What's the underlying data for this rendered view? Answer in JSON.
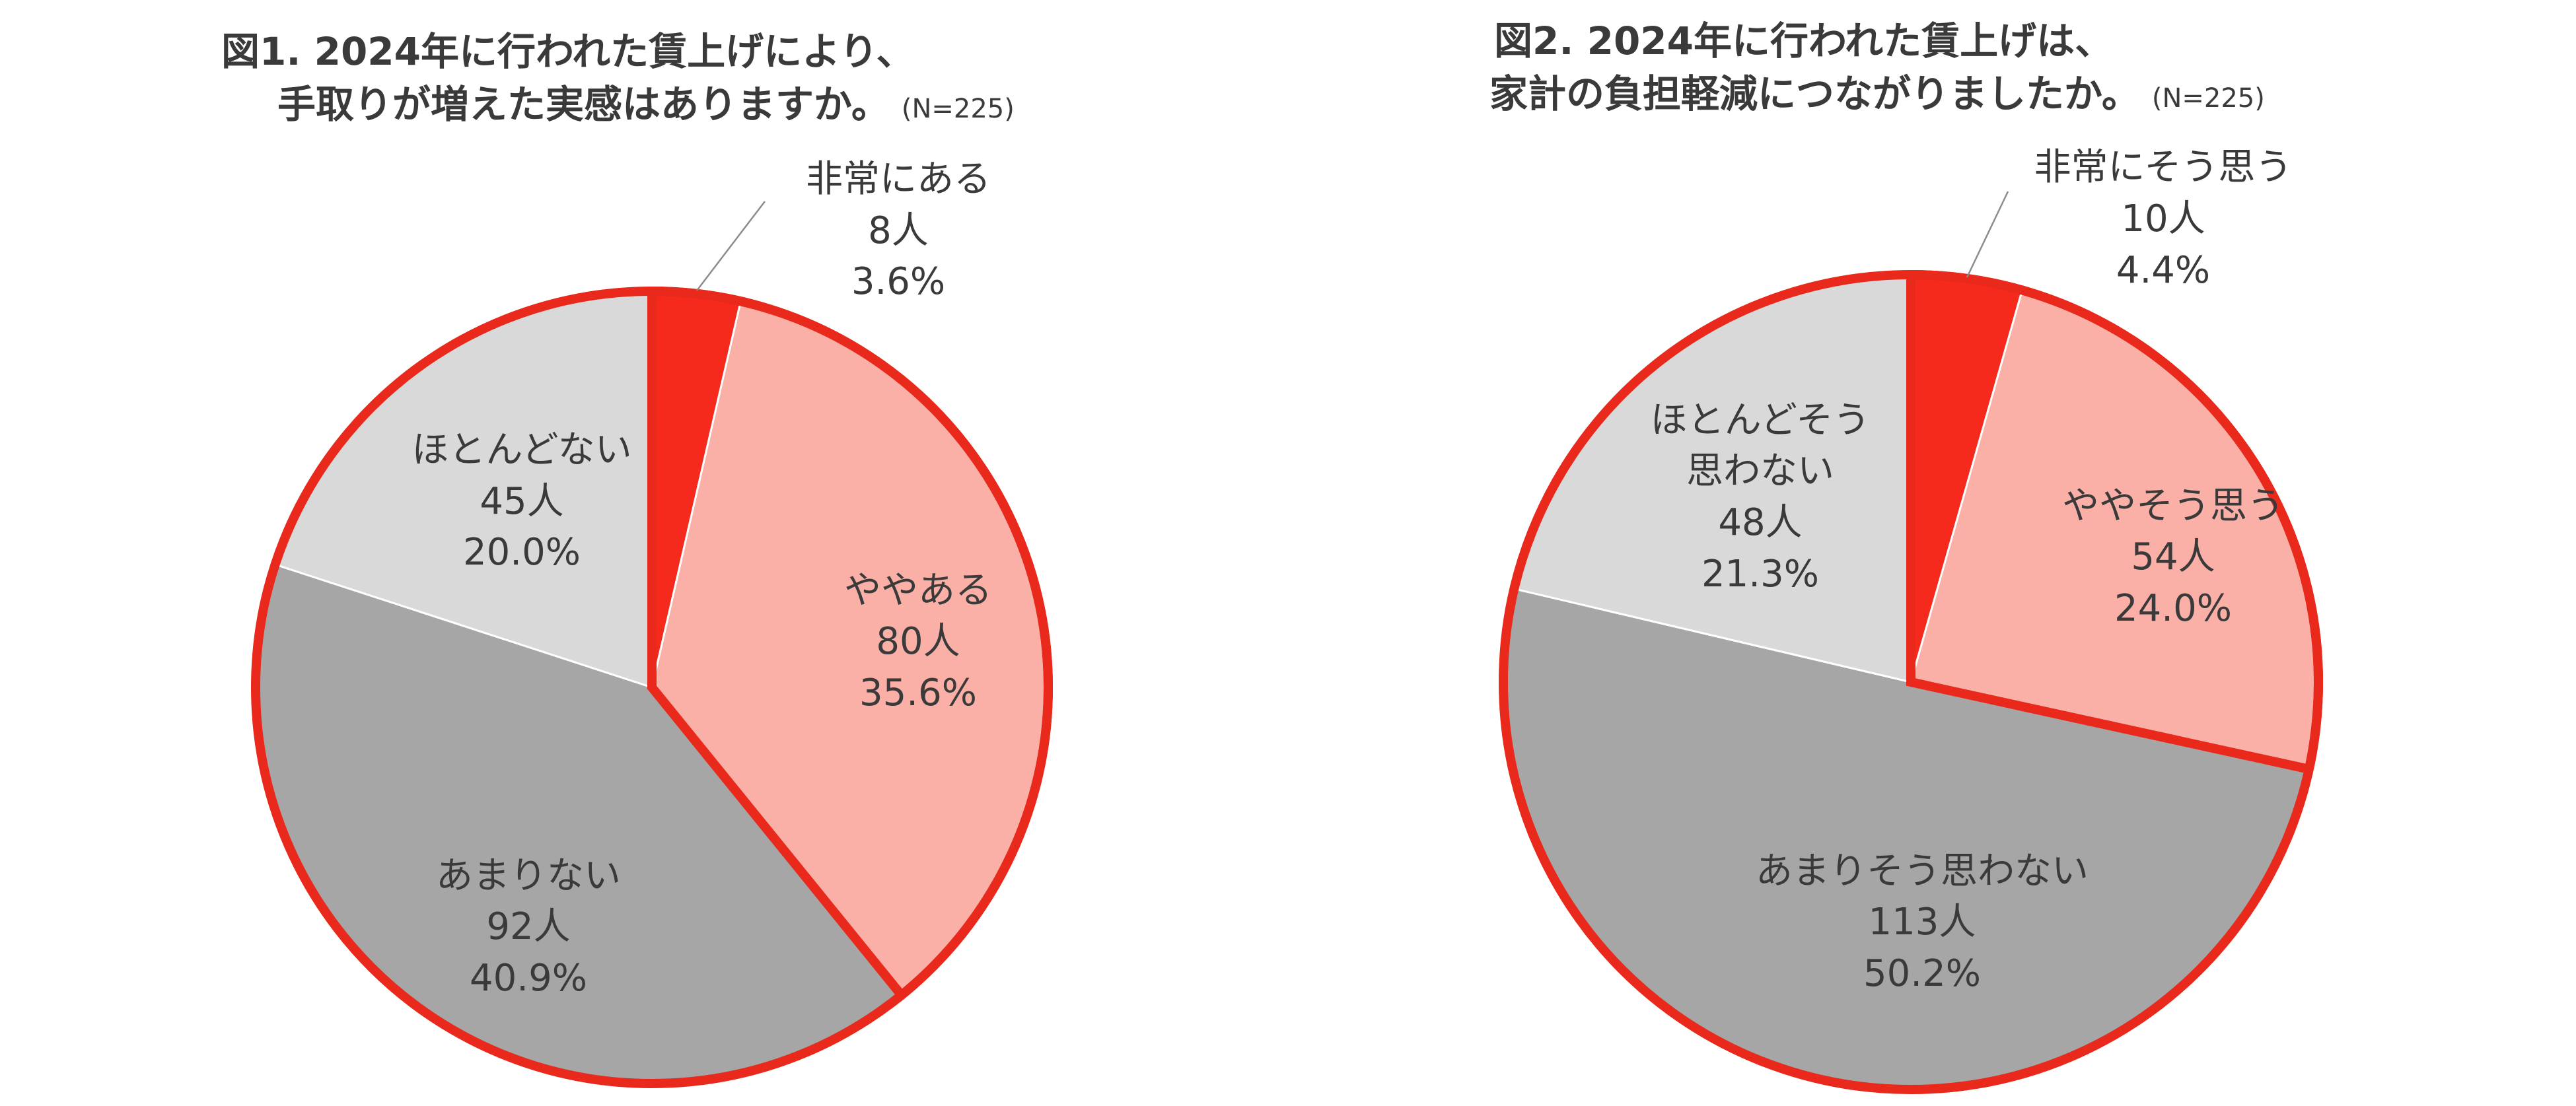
{
  "chart_data": [
    {
      "type": "pie",
      "title_lines": [
        "図1. 2024年に行われた賃上げにより、",
        "手取りが増えた実感はありますか。"
      ],
      "sample_size": "(N=225)",
      "slices": [
        {
          "name": "非常にある",
          "count_label": "8人",
          "percent_label": "3.6%",
          "value": 3.6,
          "color": "#f5291c"
        },
        {
          "name": "ややある",
          "count_label": "80人",
          "percent_label": "35.6%",
          "value": 35.6,
          "color": "#fab0a6"
        },
        {
          "name": "あまりない",
          "count_label": "92人",
          "percent_label": "40.9%",
          "value": 40.9,
          "color": "#a6a6a6"
        },
        {
          "name": "ほとんどない",
          "count_label": "45人",
          "percent_label": "20.0%",
          "value": 20.0,
          "color": "#d9d9d9"
        }
      ],
      "highlight_outline_color": "#e8291c"
    },
    {
      "type": "pie",
      "title_lines": [
        "図2. 2024年に行われた賃上げは、",
        "家計の負担軽減につながりましたか。"
      ],
      "sample_size": "(N=225)",
      "slices": [
        {
          "name": "非常にそう思う",
          "count_label": "10人",
          "percent_label": "4.4%",
          "value": 4.4,
          "color": "#f5291c"
        },
        {
          "name": "ややそう思う",
          "count_label": "54人",
          "percent_label": "24.0%",
          "value": 24.0,
          "color": "#fab0a6"
        },
        {
          "name": "あまりそう思わない",
          "count_label": "113人",
          "percent_label": "50.2%",
          "value": 50.2,
          "color": "#a6a6a6"
        },
        {
          "name": "ほとんどそう思わない",
          "count_label": "48人",
          "percent_label": "21.3%",
          "value": 21.3,
          "color": "#d9d9d9"
        }
      ],
      "highlight_outline_color": "#e8291c"
    }
  ]
}
